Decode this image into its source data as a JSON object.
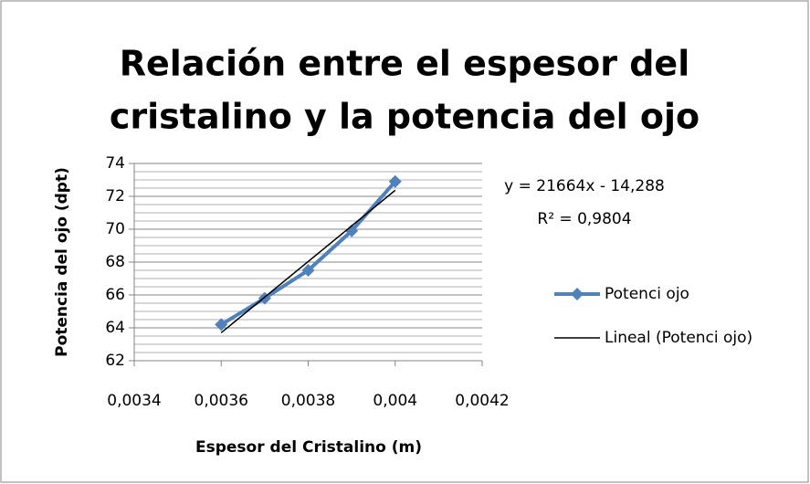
{
  "chart_data": {
    "type": "scatter",
    "title": [
      "Relación entre el espesor del",
      "cristalino y la potencia del ojo"
    ],
    "x_label": "Espesor del Cristalino (m)",
    "y_label": "Potencia del ojo (dpt)",
    "series": [
      {
        "name": "Potenci ojo",
        "color": "#4f81bd",
        "x": [
          0.0036,
          0.0037,
          0.0038,
          0.0039,
          0.004
        ],
        "values": [
          64.2,
          65.8,
          67.5,
          69.9,
          72.9
        ]
      }
    ],
    "trendline": {
      "name": "Lineal (Potenci ojo)",
      "color": "#000000",
      "slope": 21664,
      "intercept": -14.288,
      "equation": "y = 21664x - 14,288",
      "r2": "R² = 0,9804"
    },
    "xlim": [
      0.0034,
      0.0042
    ],
    "xticks": [
      {
        "value": 0.0034,
        "label": "0,0034"
      },
      {
        "value": 0.0036,
        "label": "0,0036"
      },
      {
        "value": 0.0038,
        "label": "0,0038"
      },
      {
        "value": 0.004,
        "label": "0,004"
      },
      {
        "value": 0.0042,
        "label": "0,0042"
      }
    ],
    "ylim": [
      62,
      74
    ],
    "yticks": [
      62,
      64,
      66,
      68,
      70,
      72,
      74
    ],
    "grid": true,
    "minor_grid_step": 0.5
  }
}
